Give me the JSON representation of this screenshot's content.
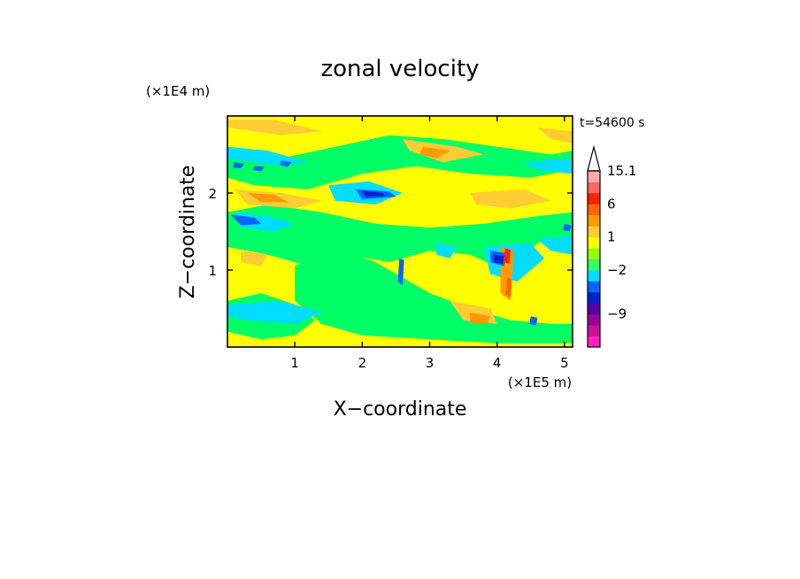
{
  "chart_data": {
    "type": "heatmap",
    "title": "zonal velocity",
    "xlabel": "X−coordinate",
    "ylabel": "Z−coordinate",
    "x_unit": "(×1E5 m)",
    "y_unit": "(×1E4 m)",
    "time_label": "t=54600 s",
    "xlim": [
      0,
      5.12
    ],
    "ylim": [
      0,
      3.0
    ],
    "x_ticks": [
      {
        "value": 1,
        "label": "1"
      },
      {
        "value": 2,
        "label": "2"
      },
      {
        "value": 3,
        "label": "3"
      },
      {
        "value": 4,
        "label": "4"
      },
      {
        "value": 5,
        "label": "5"
      }
    ],
    "y_ticks": [
      {
        "value": 1,
        "label": "1"
      },
      {
        "value": 2,
        "label": "2"
      }
    ],
    "colorbar": {
      "levels": [
        {
          "color": "#ff22bb"
        },
        {
          "color": "#cc1199"
        },
        {
          "color": "#990099",
          "label": "−9"
        },
        {
          "color": "#5500aa"
        },
        {
          "color": "#0022cc"
        },
        {
          "color": "#0066ff"
        },
        {
          "color": "#00ddff",
          "label": "−2"
        },
        {
          "color": "#33ff66"
        },
        {
          "color": "#99ff00"
        },
        {
          "color": "#ffff00",
          "label": "1"
        },
        {
          "color": "#ffcc33"
        },
        {
          "color": "#ff9900"
        },
        {
          "color": "#ff6600",
          "label": "6"
        },
        {
          "color": "#ff2200"
        },
        {
          "color": "#ff6666"
        },
        {
          "color": "#ffaaaa",
          "label": "15.1"
        }
      ],
      "overflow_color": "#ffffff"
    },
    "regions": [
      {
        "color": "#ffff00",
        "points": [
          [
            0,
            0
          ],
          [
            5.12,
            0
          ],
          [
            5.12,
            3
          ],
          [
            0,
            3
          ]
        ]
      },
      {
        "color": "#00ff66",
        "points": [
          [
            0,
            2.55
          ],
          [
            0.8,
            2.45
          ],
          [
            1.6,
            2.6
          ],
          [
            2.4,
            2.75
          ],
          [
            3.2,
            2.7
          ],
          [
            4.0,
            2.6
          ],
          [
            4.8,
            2.5
          ],
          [
            5.12,
            2.55
          ],
          [
            5.12,
            2.3
          ],
          [
            4.5,
            2.2
          ],
          [
            3.6,
            2.25
          ],
          [
            2.8,
            2.35
          ],
          [
            2.0,
            2.25
          ],
          [
            1.2,
            2.05
          ],
          [
            0.4,
            2.1
          ],
          [
            0,
            2.2
          ]
        ]
      },
      {
        "color": "#00ff66",
        "points": [
          [
            0,
            1.75
          ],
          [
            0.6,
            1.85
          ],
          [
            1.4,
            1.75
          ],
          [
            2.2,
            1.6
          ],
          [
            3.0,
            1.55
          ],
          [
            3.8,
            1.6
          ],
          [
            4.6,
            1.7
          ],
          [
            5.12,
            1.75
          ],
          [
            5.12,
            1.45
          ],
          [
            4.6,
            1.35
          ],
          [
            4.1,
            1.0
          ],
          [
            3.6,
            1.2
          ],
          [
            3.0,
            1.25
          ],
          [
            2.4,
            1.1
          ],
          [
            1.8,
            1.2
          ],
          [
            1.2,
            1.05
          ],
          [
            0.6,
            1.2
          ],
          [
            0,
            1.3
          ]
        ]
      },
      {
        "color": "#00ff66",
        "points": [
          [
            1.0,
            1.05
          ],
          [
            1.6,
            1.3
          ],
          [
            2.2,
            1.1
          ],
          [
            2.6,
            0.9
          ],
          [
            3.0,
            0.7
          ],
          [
            3.6,
            0.5
          ],
          [
            4.2,
            0.35
          ],
          [
            4.8,
            0.3
          ],
          [
            5.12,
            0.3
          ],
          [
            5.12,
            0.05
          ],
          [
            4.0,
            0.05
          ],
          [
            3.0,
            0.1
          ],
          [
            2.0,
            0.15
          ],
          [
            1.4,
            0.3
          ],
          [
            1.0,
            0.6
          ]
        ]
      },
      {
        "color": "#00ff66",
        "points": [
          [
            0,
            0.6
          ],
          [
            0.5,
            0.7
          ],
          [
            1.0,
            0.55
          ],
          [
            1.3,
            0.35
          ],
          [
            1.0,
            0.15
          ],
          [
            0.5,
            0.1
          ],
          [
            0,
            0.2
          ]
        ]
      },
      {
        "color": "#00ddff",
        "points": [
          [
            0.1,
            1.75
          ],
          [
            0.6,
            1.7
          ],
          [
            1.0,
            1.6
          ],
          [
            0.7,
            1.5
          ],
          [
            0.2,
            1.55
          ]
        ]
      },
      {
        "color": "#00ddff",
        "points": [
          [
            1.5,
            2.1
          ],
          [
            2.1,
            2.15
          ],
          [
            2.6,
            2.0
          ],
          [
            2.2,
            1.85
          ],
          [
            1.6,
            1.9
          ]
        ]
      },
      {
        "color": "#00ddff",
        "points": [
          [
            0,
            2.45
          ],
          [
            0.8,
            2.35
          ],
          [
            1.2,
            2.4
          ],
          [
            0.6,
            2.55
          ],
          [
            0,
            2.6
          ]
        ]
      },
      {
        "color": "#00ddff",
        "points": [
          [
            4.4,
            2.4
          ],
          [
            5.12,
            2.45
          ],
          [
            5.12,
            2.25
          ],
          [
            4.6,
            2.3
          ]
        ]
      },
      {
        "color": "#00ddff",
        "points": [
          [
            3.8,
            1.3
          ],
          [
            4.5,
            1.35
          ],
          [
            4.7,
            1.15
          ],
          [
            4.3,
            0.85
          ],
          [
            3.9,
            0.95
          ]
        ]
      },
      {
        "color": "#00ddff",
        "points": [
          [
            0,
            0.55
          ],
          [
            0.8,
            0.6
          ],
          [
            1.4,
            0.45
          ],
          [
            1.0,
            0.3
          ],
          [
            0.3,
            0.35
          ],
          [
            0,
            0.4
          ]
        ]
      },
      {
        "color": "#00ddff",
        "points": [
          [
            4.6,
            1.4
          ],
          [
            5.12,
            1.45
          ],
          [
            5.12,
            1.2
          ],
          [
            4.8,
            1.25
          ]
        ]
      },
      {
        "color": "#00ddff",
        "points": [
          [
            3.1,
            1.35
          ],
          [
            3.4,
            1.3
          ],
          [
            3.3,
            1.15
          ],
          [
            3.1,
            1.2
          ]
        ]
      },
      {
        "color": "#ffcc33",
        "points": [
          [
            0.1,
            2.05
          ],
          [
            0.8,
            2.0
          ],
          [
            1.4,
            1.9
          ],
          [
            1.0,
            1.8
          ],
          [
            0.3,
            1.85
          ]
        ]
      },
      {
        "color": "#ffcc33",
        "points": [
          [
            2.6,
            2.7
          ],
          [
            3.4,
            2.6
          ],
          [
            3.8,
            2.5
          ],
          [
            3.2,
            2.4
          ],
          [
            2.7,
            2.55
          ]
        ]
      },
      {
        "color": "#ffcc33",
        "points": [
          [
            0,
            2.85
          ],
          [
            0.8,
            2.75
          ],
          [
            1.4,
            2.8
          ],
          [
            0.7,
            2.95
          ],
          [
            0,
            2.95
          ]
        ]
      },
      {
        "color": "#ffcc33",
        "points": [
          [
            0.2,
            1.25
          ],
          [
            0.6,
            1.2
          ],
          [
            0.5,
            1.05
          ],
          [
            0.2,
            1.1
          ]
        ]
      },
      {
        "color": "#ffcc33",
        "points": [
          [
            3.3,
            0.6
          ],
          [
            3.9,
            0.5
          ],
          [
            4.0,
            0.3
          ],
          [
            3.5,
            0.35
          ]
        ]
      },
      {
        "color": "#ffcc33",
        "points": [
          [
            4.6,
            2.85
          ],
          [
            5.12,
            2.8
          ],
          [
            5.12,
            2.65
          ],
          [
            4.8,
            2.7
          ]
        ]
      },
      {
        "color": "#ffcc33",
        "points": [
          [
            3.6,
            2.0
          ],
          [
            4.4,
            2.05
          ],
          [
            4.8,
            1.9
          ],
          [
            4.2,
            1.8
          ],
          [
            3.7,
            1.85
          ]
        ]
      },
      {
        "color": "#ff9900",
        "points": [
          [
            0.3,
            2.0
          ],
          [
            0.7,
            1.98
          ],
          [
            0.9,
            1.88
          ],
          [
            0.5,
            1.88
          ]
        ]
      },
      {
        "color": "#ff9900",
        "points": [
          [
            2.9,
            2.6
          ],
          [
            3.3,
            2.55
          ],
          [
            3.1,
            2.45
          ],
          [
            2.85,
            2.5
          ]
        ]
      },
      {
        "color": "#ff9900",
        "points": [
          [
            4.05,
            1.3
          ],
          [
            4.25,
            1.25
          ],
          [
            4.2,
            0.6
          ],
          [
            4.05,
            0.7
          ]
        ]
      },
      {
        "color": "#ff9900",
        "points": [
          [
            3.6,
            0.45
          ],
          [
            3.9,
            0.4
          ],
          [
            3.85,
            0.3
          ],
          [
            3.6,
            0.32
          ]
        ]
      },
      {
        "color": "#0066ff",
        "points": [
          [
            0.05,
            1.72
          ],
          [
            0.4,
            1.68
          ],
          [
            0.5,
            1.6
          ],
          [
            0.2,
            1.58
          ]
        ]
      },
      {
        "color": "#0066ff",
        "points": [
          [
            1.9,
            2.05
          ],
          [
            2.4,
            2.02
          ],
          [
            2.5,
            1.95
          ],
          [
            2.0,
            1.92
          ]
        ]
      },
      {
        "color": "#0066ff",
        "points": [
          [
            3.9,
            1.25
          ],
          [
            4.15,
            1.22
          ],
          [
            4.1,
            1.05
          ],
          [
            3.9,
            1.1
          ]
        ]
      },
      {
        "color": "#0066ff",
        "points": [
          [
            0.1,
            2.4
          ],
          [
            0.25,
            2.38
          ],
          [
            0.2,
            2.32
          ],
          [
            0.08,
            2.33
          ]
        ]
      },
      {
        "color": "#0066ff",
        "points": [
          [
            0.4,
            2.35
          ],
          [
            0.55,
            2.34
          ],
          [
            0.5,
            2.28
          ],
          [
            0.38,
            2.3
          ]
        ]
      },
      {
        "color": "#0066ff",
        "points": [
          [
            0.8,
            2.42
          ],
          [
            0.95,
            2.4
          ],
          [
            0.9,
            2.34
          ],
          [
            0.78,
            2.36
          ]
        ]
      },
      {
        "color": "#0066ff",
        "points": [
          [
            4.5,
            0.4
          ],
          [
            4.6,
            0.38
          ],
          [
            4.58,
            0.28
          ],
          [
            4.48,
            0.3
          ]
        ]
      },
      {
        "color": "#0066ff",
        "points": [
          [
            5.0,
            1.6
          ],
          [
            5.1,
            1.58
          ],
          [
            5.08,
            1.5
          ],
          [
            4.98,
            1.52
          ]
        ]
      },
      {
        "color": "#0066ff",
        "points": [
          [
            2.55,
            1.15
          ],
          [
            2.62,
            1.13
          ],
          [
            2.6,
            0.8
          ],
          [
            2.53,
            0.85
          ]
        ]
      },
      {
        "color": "#0022cc",
        "points": [
          [
            2.0,
            2.03
          ],
          [
            2.3,
            2.0
          ],
          [
            2.35,
            1.96
          ],
          [
            2.05,
            1.95
          ]
        ]
      },
      {
        "color": "#0022cc",
        "points": [
          [
            3.95,
            1.2
          ],
          [
            4.1,
            1.18
          ],
          [
            4.08,
            1.08
          ],
          [
            3.95,
            1.1
          ]
        ]
      },
      {
        "color": "#ff2200",
        "points": [
          [
            4.12,
            1.28
          ],
          [
            4.2,
            1.26
          ],
          [
            4.18,
            1.08
          ],
          [
            4.1,
            1.1
          ]
        ]
      },
      {
        "color": "#ff6600",
        "points": [
          [
            4.15,
            0.9
          ],
          [
            4.22,
            0.88
          ],
          [
            4.2,
            0.65
          ],
          [
            4.13,
            0.68
          ]
        ]
      }
    ]
  }
}
